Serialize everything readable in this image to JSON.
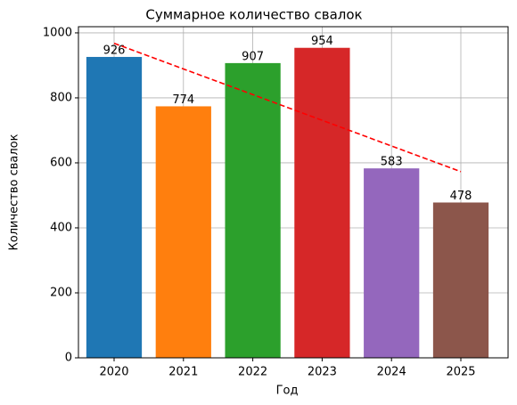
{
  "chart_data": {
    "type": "bar",
    "title": "Суммарное количество свалок",
    "xlabel": "Год",
    "ylabel": "Количество свалок",
    "categories": [
      "2020",
      "2021",
      "2022",
      "2023",
      "2024",
      "2025"
    ],
    "values": [
      926,
      774,
      907,
      954,
      583,
      478
    ],
    "colors": [
      "#1f77b4",
      "#ff7f0e",
      "#2ca02c",
      "#d62728",
      "#9467bd",
      "#8c564b"
    ],
    "trend": {
      "values": [
        968,
        889,
        810,
        731,
        652,
        573
      ],
      "color": "#ff0000",
      "dashed": true
    },
    "ylim": [
      0,
      1019
    ],
    "yticks": [
      0,
      200,
      400,
      600,
      800,
      1000
    ],
    "grid": true
  }
}
